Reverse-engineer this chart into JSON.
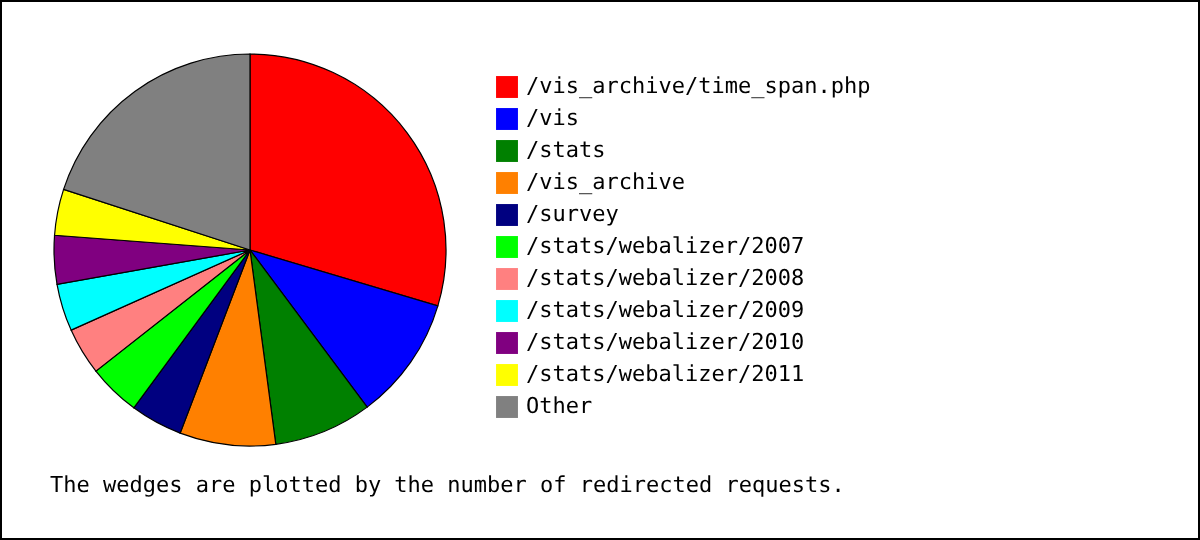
{
  "chart_data": {
    "type": "pie",
    "categories": [
      "/vis_archive/time_span.php",
      "/vis",
      "/stats",
      "/vis_archive",
      "/survey",
      "/stats/webalizer/2007",
      "/stats/webalizer/2008",
      "/stats/webalizer/2009",
      "/stats/webalizer/2010",
      "/stats/webalizer/2011",
      "Other"
    ],
    "values": [
      29.6,
      10.2,
      8.1,
      7.9,
      4.3,
      4.3,
      3.9,
      3.9,
      4.0,
      3.8,
      20.0
    ],
    "colors": [
      "#ff0000",
      "#0000ff",
      "#008000",
      "#ff8000",
      "#000080",
      "#00ff00",
      "#ff8080",
      "#00ffff",
      "#800080",
      "#ffff00",
      "#808080"
    ],
    "legend": "right",
    "annotations": [
      "The wedges are plotted by the number of redirected requests."
    ]
  }
}
